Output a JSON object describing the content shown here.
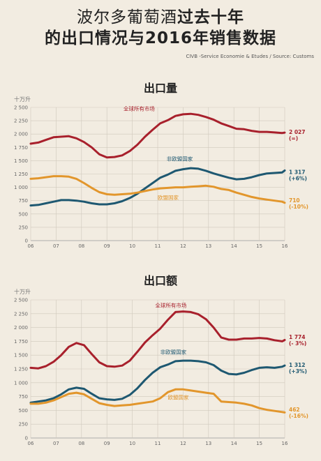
{
  "header": {
    "title_part1": "波尔多葡萄酒",
    "title_part2": "过去十年",
    "title_line2": "的出口情况与2016年销售数据",
    "source": "CIVB -Service Economie & Etudes / Source: Customs"
  },
  "colors": {
    "world": "#a8202c",
    "noneu": "#1e5871",
    "eu": "#e2962c"
  },
  "chart_data": [
    {
      "type": "line",
      "title": "出口量",
      "ylabel": "十万升",
      "ylim": [
        0,
        2500
      ],
      "yticks": [
        "0",
        "250",
        "500",
        "750",
        "1 000",
        "1 250",
        "1 500",
        "1 750",
        "2 000",
        "2 250",
        "2 500"
      ],
      "xticks": [
        "06",
        "07",
        "08",
        "09",
        "10",
        "11",
        "12",
        "13",
        "14",
        "15",
        "16"
      ],
      "xlim": [
        2006,
        2016
      ],
      "series": [
        {
          "name": "全球所有市场",
          "color": "#a8202c",
          "end_value": "2 027",
          "end_change": "(=)",
          "x": [
            2006,
            2006.3,
            2006.6,
            2006.9,
            2007.2,
            2007.5,
            2007.8,
            2008.1,
            2008.4,
            2008.7,
            2009,
            2009.3,
            2009.6,
            2009.9,
            2010.2,
            2010.5,
            2010.8,
            2011.1,
            2011.4,
            2011.7,
            2012,
            2012.3,
            2012.6,
            2012.9,
            2013.2,
            2013.5,
            2013.8,
            2014.1,
            2014.4,
            2014.7,
            2015,
            2015.3,
            2015.6,
            2015.9,
            2016
          ],
          "y": [
            1820,
            1840,
            1890,
            1940,
            1950,
            1960,
            1920,
            1850,
            1750,
            1620,
            1560,
            1570,
            1600,
            1680,
            1800,
            1950,
            2080,
            2200,
            2260,
            2340,
            2370,
            2380,
            2360,
            2320,
            2270,
            2200,
            2150,
            2100,
            2090,
            2060,
            2040,
            2040,
            2030,
            2020,
            2027
          ]
        },
        {
          "name": "非欧盟国家",
          "color": "#1e5871",
          "end_value": "1 317",
          "end_change": "(+6%)",
          "x": [
            2006,
            2006.3,
            2006.6,
            2006.9,
            2007.2,
            2007.5,
            2007.8,
            2008.1,
            2008.4,
            2008.7,
            2009,
            2009.3,
            2009.6,
            2009.9,
            2010.2,
            2010.5,
            2010.8,
            2011.1,
            2011.4,
            2011.7,
            2012,
            2012.3,
            2012.6,
            2012.9,
            2013.2,
            2013.5,
            2013.8,
            2014.1,
            2014.4,
            2014.7,
            2015,
            2015.3,
            2015.6,
            2015.9,
            2016
          ],
          "y": [
            660,
            670,
            700,
            730,
            760,
            760,
            750,
            730,
            700,
            680,
            680,
            700,
            740,
            800,
            880,
            980,
            1080,
            1180,
            1240,
            1310,
            1340,
            1360,
            1350,
            1310,
            1260,
            1220,
            1180,
            1150,
            1160,
            1190,
            1230,
            1260,
            1270,
            1280,
            1317
          ]
        },
        {
          "name": "欧盟国家",
          "color": "#e2962c",
          "end_value": "710",
          "end_change": "(-10%)",
          "x": [
            2006,
            2006.3,
            2006.6,
            2006.9,
            2007.2,
            2007.5,
            2007.8,
            2008.1,
            2008.4,
            2008.7,
            2009,
            2009.3,
            2009.6,
            2009.9,
            2010.2,
            2010.5,
            2010.8,
            2011.1,
            2011.4,
            2011.7,
            2012,
            2012.3,
            2012.6,
            2012.9,
            2013.2,
            2013.5,
            2013.8,
            2014.1,
            2014.4,
            2014.7,
            2015,
            2015.3,
            2015.6,
            2015.9,
            2016
          ],
          "y": [
            1160,
            1170,
            1190,
            1210,
            1210,
            1200,
            1160,
            1080,
            990,
            910,
            870,
            860,
            870,
            880,
            900,
            930,
            960,
            980,
            990,
            1000,
            1000,
            1010,
            1020,
            1030,
            1010,
            970,
            950,
            900,
            860,
            820,
            790,
            770,
            750,
            730,
            710
          ]
        }
      ]
    },
    {
      "type": "line",
      "title": "出口额",
      "ylabel": "十万升",
      "ylim": [
        0,
        2500
      ],
      "yticks": [
        "0",
        "250",
        "500",
        "750",
        "1 000",
        "1 250",
        "1 500",
        "1 750",
        "2 000",
        "2 250",
        "2 500"
      ],
      "xticks": [
        "06",
        "07",
        "08",
        "09",
        "10",
        "11",
        "12",
        "13",
        "14",
        "15",
        "16"
      ],
      "xlim": [
        2006,
        2016
      ],
      "series": [
        {
          "name": "全球所有市场",
          "color": "#a8202c",
          "end_value": "1 774",
          "end_change": "(- 3%)",
          "x": [
            2006,
            2006.3,
            2006.6,
            2006.9,
            2007.2,
            2007.5,
            2007.8,
            2008.1,
            2008.4,
            2008.7,
            2009,
            2009.3,
            2009.6,
            2009.9,
            2010.2,
            2010.5,
            2010.8,
            2011.1,
            2011.4,
            2011.7,
            2012,
            2012.3,
            2012.6,
            2012.9,
            2013.2,
            2013.5,
            2013.8,
            2014.1,
            2014.4,
            2014.7,
            2015,
            2015.3,
            2015.6,
            2015.9,
            2016
          ],
          "y": [
            1270,
            1260,
            1300,
            1380,
            1500,
            1650,
            1720,
            1680,
            1520,
            1370,
            1300,
            1290,
            1310,
            1400,
            1560,
            1730,
            1860,
            1980,
            2140,
            2280,
            2290,
            2280,
            2240,
            2150,
            2000,
            1820,
            1780,
            1780,
            1800,
            1800,
            1810,
            1800,
            1770,
            1750,
            1774
          ]
        },
        {
          "name": "非欧盟国家",
          "color": "#1e5871",
          "end_value": "1 312",
          "end_change": "(+3%)",
          "x": [
            2006,
            2006.3,
            2006.6,
            2006.9,
            2007.2,
            2007.5,
            2007.8,
            2008.1,
            2008.4,
            2008.7,
            2009,
            2009.3,
            2009.6,
            2009.9,
            2010.2,
            2010.5,
            2010.8,
            2011.1,
            2011.4,
            2011.7,
            2012,
            2012.3,
            2012.6,
            2012.9,
            2013.2,
            2013.5,
            2013.8,
            2014.1,
            2014.4,
            2014.7,
            2015,
            2015.3,
            2015.6,
            2015.9,
            2016
          ],
          "y": [
            640,
            660,
            680,
            720,
            790,
            880,
            910,
            890,
            800,
            720,
            700,
            690,
            710,
            780,
            900,
            1050,
            1180,
            1280,
            1330,
            1390,
            1400,
            1400,
            1390,
            1370,
            1320,
            1220,
            1160,
            1150,
            1180,
            1230,
            1270,
            1280,
            1270,
            1290,
            1312
          ]
        },
        {
          "name": "欧盟国家",
          "color": "#e2962c",
          "end_value": "462",
          "end_change": "(-16%)",
          "x": [
            2006,
            2006.3,
            2006.6,
            2006.9,
            2007.2,
            2007.5,
            2007.8,
            2008.1,
            2008.4,
            2008.7,
            2009,
            2009.3,
            2009.6,
            2009.9,
            2010.2,
            2010.5,
            2010.8,
            2011.1,
            2011.4,
            2011.7,
            2012,
            2012.3,
            2012.6,
            2012.9,
            2013.2,
            2013.5,
            2013.8,
            2014.1,
            2014.4,
            2014.7,
            2015,
            2015.3,
            2015.6,
            2015.9,
            2016
          ],
          "y": [
            620,
            620,
            640,
            680,
            740,
            800,
            820,
            790,
            710,
            630,
            600,
            580,
            590,
            600,
            620,
            640,
            660,
            720,
            830,
            880,
            880,
            860,
            840,
            820,
            800,
            660,
            650,
            640,
            620,
            590,
            540,
            510,
            490,
            470,
            462
          ]
        }
      ]
    }
  ]
}
